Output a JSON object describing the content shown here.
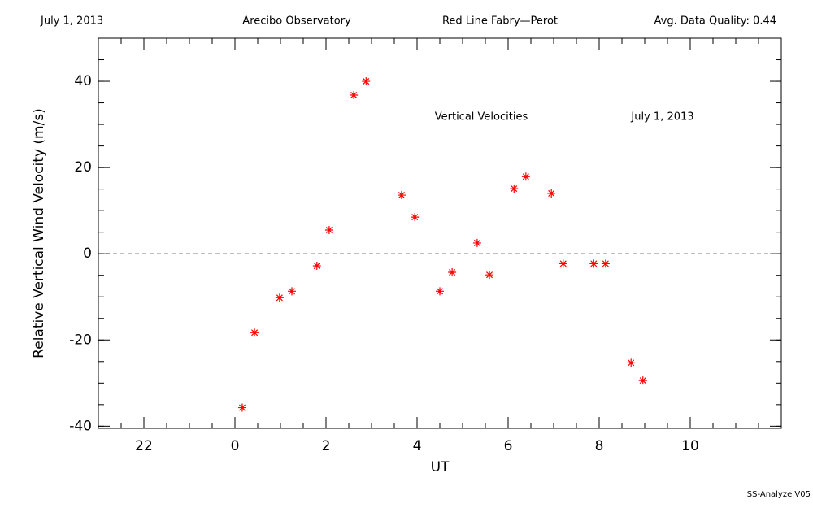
{
  "chart_data": {
    "type": "scatter",
    "header": [
      "July 1, 2013",
      "Arecibo Observatory",
      "Red Line Fabry—Perot",
      "Avg. Data Quality: 0.44"
    ],
    "annotations": [
      "Vertical Velocities",
      "July 1, 2013"
    ],
    "footer": "SS-Analyze V05",
    "x_label": "UT",
    "y_label": "Relative Vertical Wind Velocity (m/s)",
    "xlim": [
      -3,
      12
    ],
    "ylim": [
      -40.5,
      50
    ],
    "xticks": [
      {
        "value": -2,
        "label": "22"
      },
      0,
      2,
      4,
      6,
      8,
      10
    ],
    "yticks": [
      -40,
      -20,
      0,
      20,
      40
    ],
    "xminor_step": 0.5,
    "yminor_step": 5,
    "hline": 0,
    "series": [
      {
        "color": "#ff0000",
        "x": [
          0.16,
          0.43,
          0.98,
          1.25,
          1.8,
          2.07,
          2.61,
          2.88,
          3.66,
          3.95,
          4.5,
          4.77,
          5.32,
          5.59,
          6.13,
          6.39,
          6.95,
          7.21,
          7.88,
          8.14,
          8.7,
          8.96
        ],
        "values": [
          -35.7,
          -18.3,
          -10.2,
          -8.7,
          -2.8,
          5.5,
          36.8,
          40.0,
          13.6,
          8.5,
          -8.7,
          -4.3,
          2.5,
          -4.9,
          15.1,
          17.9,
          14.0,
          -2.3,
          -2.3,
          -2.3,
          -25.3,
          -29.4
        ]
      }
    ]
  }
}
